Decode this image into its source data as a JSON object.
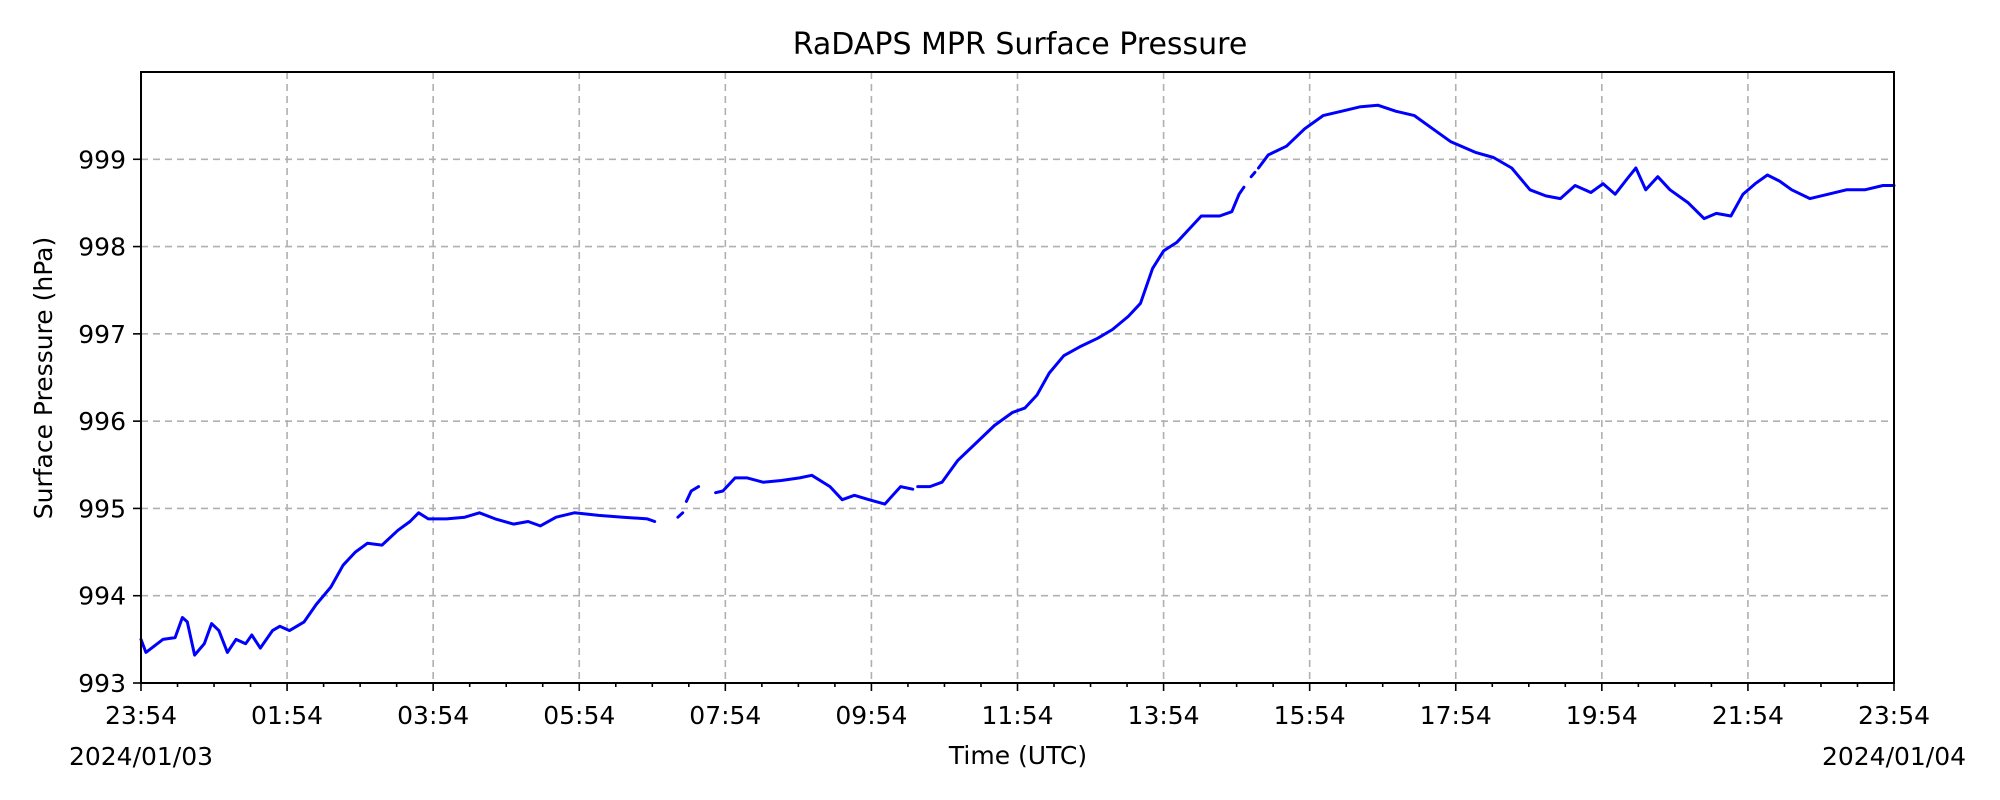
{
  "chart_data": {
    "type": "line",
    "title": "RaDAPS MPR Surface Pressure",
    "xlabel": "Time (UTC)",
    "ylabel": "Surface Pressure (hPa)",
    "xlim": [
      "2024-01-03 23:54",
      "2024-01-04 23:54"
    ],
    "ylim": [
      993,
      1000
    ],
    "grid": true,
    "x_ticks": [
      "23:54",
      "01:54",
      "03:54",
      "05:54",
      "07:54",
      "09:54",
      "11:54",
      "13:54",
      "15:54",
      "17:54",
      "19:54",
      "21:54",
      "23:54"
    ],
    "x_tick_dates": [
      {
        "tick": "23:54",
        "date": "2024/01/03"
      },
      {
        "tick": "23:54",
        "date": "2024/01/04"
      }
    ],
    "y_ticks": [
      993,
      994,
      995,
      996,
      997,
      998,
      999
    ],
    "series": [
      {
        "color": "#0000ff",
        "segments": [
          [
            [
              "2024-01-03 23:54",
              993.5
            ],
            [
              "2024-01-03 23:58",
              993.35
            ],
            [
              "2024-01-04 00:12",
              993.5
            ],
            [
              "2024-01-04 00:22",
              993.52
            ],
            [
              "2024-01-04 00:28",
              993.75
            ],
            [
              "2024-01-04 00:32",
              993.7
            ],
            [
              "2024-01-04 00:38",
              993.32
            ],
            [
              "2024-01-04 00:46",
              993.45
            ],
            [
              "2024-01-04 00:52",
              993.68
            ],
            [
              "2024-01-04 00:58",
              993.6
            ],
            [
              "2024-01-04 01:05",
              993.35
            ],
            [
              "2024-01-04 01:12",
              993.5
            ],
            [
              "2024-01-04 01:20",
              993.45
            ],
            [
              "2024-01-04 01:25",
              993.55
            ],
            [
              "2024-01-04 01:32",
              993.4
            ],
            [
              "2024-01-04 01:42",
              993.6
            ],
            [
              "2024-01-04 01:48",
              993.65
            ],
            [
              "2024-01-04 01:56",
              993.6
            ],
            [
              "2024-01-04 02:08",
              993.7
            ],
            [
              "2024-01-04 02:18",
              993.9
            ],
            [
              "2024-01-04 02:30",
              994.1
            ],
            [
              "2024-01-04 02:40",
              994.35
            ],
            [
              "2024-01-04 02:50",
              994.5
            ],
            [
              "2024-01-04 03:00",
              994.6
            ],
            [
              "2024-01-04 03:12",
              994.58
            ],
            [
              "2024-01-04 03:25",
              994.75
            ],
            [
              "2024-01-04 03:35",
              994.85
            ],
            [
              "2024-01-04 03:42",
              994.95
            ],
            [
              "2024-01-04 03:50",
              994.88
            ],
            [
              "2024-01-04 04:05",
              994.88
            ],
            [
              "2024-01-04 04:20",
              994.9
            ],
            [
              "2024-01-04 04:32",
              994.95
            ],
            [
              "2024-01-04 04:45",
              994.88
            ],
            [
              "2024-01-04 05:00",
              994.82
            ],
            [
              "2024-01-04 05:12",
              994.85
            ],
            [
              "2024-01-04 05:22",
              994.8
            ],
            [
              "2024-01-04 05:35",
              994.9
            ],
            [
              "2024-01-04 05:50",
              994.95
            ],
            [
              "2024-01-04 06:10",
              994.92
            ],
            [
              "2024-01-04 06:30",
              994.9
            ],
            [
              "2024-01-04 06:50",
              994.88
            ],
            [
              "2024-01-04 06:56",
              994.85
            ]
          ],
          [
            [
              "2024-01-04 07:15",
              994.9
            ],
            [
              "2024-01-04 07:19",
              994.95
            ]
          ],
          [
            [
              "2024-01-04 07:22",
              995.08
            ],
            [
              "2024-01-04 07:26",
              995.2
            ],
            [
              "2024-01-04 07:32",
              995.25
            ]
          ],
          [
            [
              "2024-01-04 07:46",
              995.18
            ],
            [
              "2024-01-04 07:52",
              995.2
            ],
            [
              "2024-01-04 08:02",
              995.35
            ],
            [
              "2024-01-04 08:12",
              995.35
            ],
            [
              "2024-01-04 08:25",
              995.3
            ],
            [
              "2024-01-04 08:40",
              995.32
            ],
            [
              "2024-01-04 08:55",
              995.35
            ],
            [
              "2024-01-04 09:05",
              995.38
            ],
            [
              "2024-01-04 09:20",
              995.25
            ],
            [
              "2024-01-04 09:30",
              995.1
            ],
            [
              "2024-01-04 09:40",
              995.15
            ],
            [
              "2024-01-04 09:52",
              995.1
            ],
            [
              "2024-01-04 10:05",
              995.05
            ],
            [
              "2024-01-04 10:18",
              995.25
            ],
            [
              "2024-01-04 10:28",
              995.22
            ]
          ],
          [
            [
              "2024-01-04 10:32",
              995.25
            ],
            [
              "2024-01-04 10:42",
              995.25
            ],
            [
              "2024-01-04 10:52",
              995.3
            ],
            [
              "2024-01-04 11:05",
              995.55
            ],
            [
              "2024-01-04 11:20",
              995.75
            ],
            [
              "2024-01-04 11:35",
              995.95
            ],
            [
              "2024-01-04 11:50",
              996.1
            ],
            [
              "2024-01-04 12:00",
              996.15
            ],
            [
              "2024-01-04 12:10",
              996.3
            ],
            [
              "2024-01-04 12:20",
              996.55
            ],
            [
              "2024-01-04 12:32",
              996.75
            ],
            [
              "2024-01-04 12:45",
              996.85
            ],
            [
              "2024-01-04 13:00",
              996.95
            ],
            [
              "2024-01-04 13:12",
              997.05
            ],
            [
              "2024-01-04 13:25",
              997.2
            ],
            [
              "2024-01-04 13:35",
              997.35
            ],
            [
              "2024-01-04 13:45",
              997.75
            ],
            [
              "2024-01-04 13:54",
              997.95
            ],
            [
              "2024-01-04 14:05",
              998.05
            ],
            [
              "2024-01-04 14:15",
              998.2
            ],
            [
              "2024-01-04 14:25",
              998.35
            ],
            [
              "2024-01-04 14:40",
              998.35
            ],
            [
              "2024-01-04 14:50",
              998.4
            ],
            [
              "2024-01-04 14:56",
              998.6
            ],
            [
              "2024-01-04 15:00",
              998.68
            ]
          ],
          [
            [
              "2024-01-04 15:06",
              998.8
            ],
            [
              "2024-01-04 15:09",
              998.85
            ]
          ],
          [
            [
              "2024-01-04 15:12",
              998.9
            ],
            [
              "2024-01-04 15:20",
              999.05
            ],
            [
              "2024-01-04 15:35",
              999.15
            ],
            [
              "2024-01-04 15:50",
              999.35
            ],
            [
              "2024-01-04 16:05",
              999.5
            ],
            [
              "2024-01-04 16:20",
              999.55
            ],
            [
              "2024-01-04 16:35",
              999.6
            ],
            [
              "2024-01-04 16:50",
              999.62
            ],
            [
              "2024-01-04 17:05",
              999.55
            ],
            [
              "2024-01-04 17:20",
              999.5
            ],
            [
              "2024-01-04 17:35",
              999.35
            ],
            [
              "2024-01-04 17:50",
              999.2
            ],
            [
              "2024-01-04 18:10",
              999.08
            ],
            [
              "2024-01-04 18:25",
              999.02
            ],
            [
              "2024-01-04 18:40",
              998.9
            ],
            [
              "2024-01-04 18:55",
              998.65
            ],
            [
              "2024-01-04 19:08",
              998.58
            ],
            [
              "2024-01-04 19:20",
              998.55
            ],
            [
              "2024-01-04 19:32",
              998.7
            ],
            [
              "2024-01-04 19:45",
              998.62
            ],
            [
              "2024-01-04 19:55",
              998.72
            ],
            [
              "2024-01-04 20:05",
              998.6
            ],
            [
              "2024-01-04 20:15",
              998.78
            ],
            [
              "2024-01-04 20:22",
              998.9
            ],
            [
              "2024-01-04 20:30",
              998.65
            ],
            [
              "2024-01-04 20:40",
              998.8
            ],
            [
              "2024-01-04 20:50",
              998.65
            ],
            [
              "2024-01-04 21:05",
              998.5
            ],
            [
              "2024-01-04 21:18",
              998.32
            ],
            [
              "2024-01-04 21:28",
              998.38
            ],
            [
              "2024-01-04 21:40",
              998.35
            ],
            [
              "2024-01-04 21:50",
              998.6
            ],
            [
              "2024-01-04 22:00",
              998.72
            ],
            [
              "2024-01-04 22:10",
              998.82
            ],
            [
              "2024-01-04 22:20",
              998.75
            ],
            [
              "2024-01-04 22:30",
              998.65
            ],
            [
              "2024-01-04 22:45",
              998.55
            ],
            [
              "2024-01-04 23:00",
              998.6
            ],
            [
              "2024-01-04 23:15",
              998.65
            ],
            [
              "2024-01-04 23:30",
              998.65
            ],
            [
              "2024-01-04 23:45",
              998.7
            ],
            [
              "2024-01-04 23:54",
              998.7
            ]
          ]
        ]
      }
    ]
  }
}
